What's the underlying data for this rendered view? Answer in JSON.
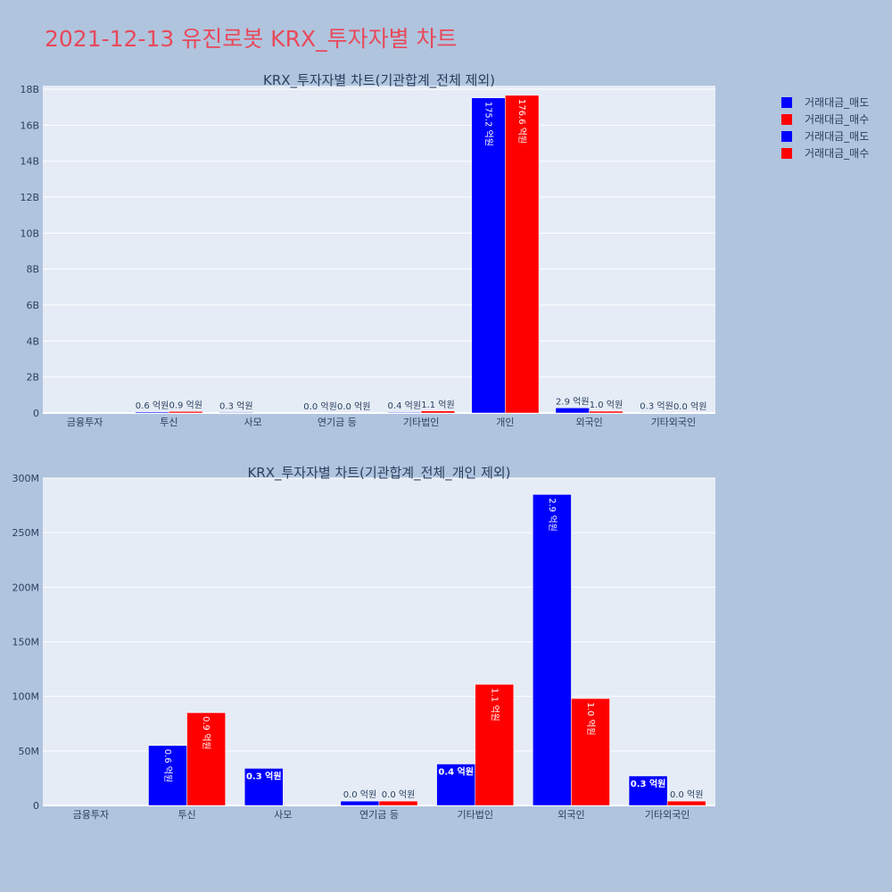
{
  "page": {
    "title": "2021-12-13 유진로봇 KRX_투자자별 차트"
  },
  "colors": {
    "sell": "#0000ff",
    "buy": "#ff0000",
    "plot_bg": "#e5ecf6",
    "page_bg": "#b0c4de",
    "title": "#e8495a"
  },
  "legend": {
    "placement": "top-right",
    "items": [
      "거래대금_매도",
      "거래대금_매수",
      "거래대금_매도",
      "거래대금_매수"
    ]
  },
  "chart_data": [
    {
      "type": "bar",
      "title": "KRX_투자자별 차트(기관합계_전체 제외)",
      "categories": [
        "금융투자",
        "투신",
        "사모",
        "연기금 등",
        "기타법인",
        "개인",
        "외국인",
        "기타외국인"
      ],
      "series": [
        {
          "name": "거래대금_매도",
          "values": [
            0,
            55000000,
            34000000,
            4000000,
            38000000,
            17520000000,
            285000000,
            27000000
          ],
          "labels": [
            "",
            "0.6 억원",
            "0.3 억원",
            "0.0 억원",
            "0.4 억원",
            "175.2 억원",
            "2.9 억원",
            "0.3 억원"
          ]
        },
        {
          "name": "거래대금_매수",
          "values": [
            0,
            85000000,
            0,
            4000000,
            111000000,
            17660000000,
            98000000,
            4000000
          ],
          "labels": [
            "",
            "0.9 억원",
            "",
            "0.0 억원",
            "1.1 억원",
            "176.6 억원",
            "1.0 억원",
            "0.0 억원"
          ]
        }
      ],
      "ylim": [
        0,
        18200000000
      ],
      "yticks": [
        0,
        2000000000,
        4000000000,
        6000000000,
        8000000000,
        10000000000,
        12000000000,
        14000000000,
        16000000000,
        18000000000
      ],
      "ytick_labels": [
        "0",
        "2B",
        "4B",
        "6B",
        "8B",
        "10B",
        "12B",
        "14B",
        "16B",
        "18B"
      ],
      "grid": true
    },
    {
      "type": "bar",
      "title": "KRX_투자자별 차트(기관합계_전체_개인 제외)",
      "categories": [
        "금융투자",
        "투신",
        "사모",
        "연기금 등",
        "기타법인",
        "외국인",
        "기타외국인"
      ],
      "series": [
        {
          "name": "거래대금_매도",
          "values": [
            0,
            55000000,
            34000000,
            4000000,
            38000000,
            285000000,
            27000000
          ],
          "labels": [
            "",
            "0.6 억원",
            "0.3 억원",
            "0.0 억원",
            "0.4 억원",
            "2.9 억원",
            "0.3 억원"
          ]
        },
        {
          "name": "거래대금_매수",
          "values": [
            0,
            85000000,
            0,
            4000000,
            111000000,
            98000000,
            4000000
          ],
          "labels": [
            "",
            "0.9 억원",
            "",
            "0.0 억원",
            "1.1 억원",
            "1.0 억원",
            "0.0 억원"
          ]
        }
      ],
      "ylim": [
        0,
        300000000
      ],
      "yticks": [
        0,
        50000000,
        100000000,
        150000000,
        200000000,
        250000000,
        300000000
      ],
      "ytick_labels": [
        "0",
        "50M",
        "100M",
        "150M",
        "200M",
        "250M",
        "300M"
      ],
      "grid": true
    }
  ]
}
